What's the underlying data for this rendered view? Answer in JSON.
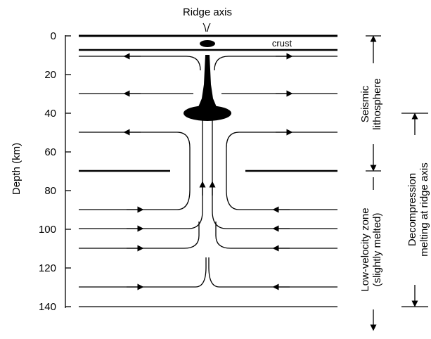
{
  "title": "Ridge axis",
  "crust_label": "crust",
  "depth_axis": {
    "label": "Depth (km)",
    "unit": "km",
    "ticks": [
      "0",
      "20",
      "40",
      "60",
      "80",
      "100",
      "120",
      "140"
    ]
  },
  "zones": {
    "seismic_lithosphere": [
      "Seismic",
      "lithosphere"
    ],
    "low_velocity_zone": [
      "Low-velocity zone",
      "(slightly melted)"
    ],
    "decompression_melting": [
      "Decompression",
      "melting at ridge axis"
    ]
  },
  "colors": {
    "ink": "#000000",
    "background": "#ffffff"
  }
}
